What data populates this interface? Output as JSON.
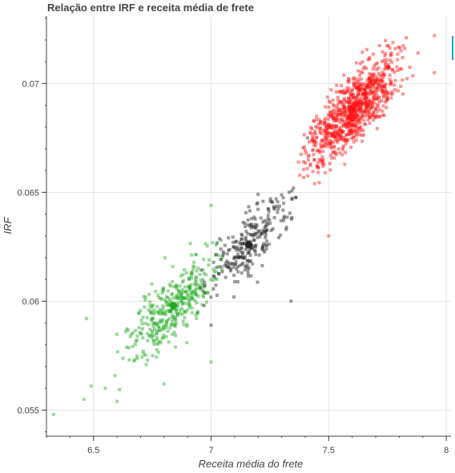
{
  "chart_data": {
    "type": "scatter",
    "title": "Relação entre IRF e receita média de frete",
    "xlabel": "Receita média do frete",
    "ylabel": "IRF",
    "xlim": [
      6.3,
      8.02
    ],
    "ylim": [
      0.0538,
      0.0731
    ],
    "x_ticks": [
      6.5,
      7,
      7.5,
      8
    ],
    "x_tick_labels": [
      "6.5",
      "7",
      "7.5",
      "8"
    ],
    "y_ticks": [
      0.055,
      0.06,
      0.065,
      0.07
    ],
    "y_tick_labels": [
      "0.055",
      "0.06",
      "0.065",
      "0.07"
    ],
    "grid": true,
    "legend": "none",
    "clusters": [
      {
        "color": "#22aa22",
        "centroid": {
          "x": 6.84,
          "y": 0.0598
        },
        "count": 380,
        "spread": {
          "major": 0.14,
          "minor": 0.05
        },
        "angle_deg": 49,
        "x_range": [
          6.33,
          7.05
        ],
        "y_range": [
          0.0548,
          0.0644
        ],
        "outliers": [
          {
            "x": 6.33,
            "y": 0.0548
          },
          {
            "x": 6.46,
            "y": 0.0555
          },
          {
            "x": 6.49,
            "y": 0.0561
          },
          {
            "x": 6.55,
            "y": 0.056
          },
          {
            "x": 6.6,
            "y": 0.0554
          },
          {
            "x": 6.47,
            "y": 0.0592
          },
          {
            "x": 6.8,
            "y": 0.0562
          },
          {
            "x": 7.0,
            "y": 0.0572
          },
          {
            "x": 7.0,
            "y": 0.0644
          }
        ]
      },
      {
        "color": "#222222",
        "centroid": {
          "x": 7.16,
          "y": 0.0626
        },
        "count": 260,
        "spread": {
          "major": 0.13,
          "minor": 0.045
        },
        "angle_deg": 51,
        "x_range": [
          6.95,
          7.43
        ],
        "y_range": [
          0.0588,
          0.0675
        ],
        "outliers": [
          {
            "x": 7.0,
            "y": 0.0589
          },
          {
            "x": 7.34,
            "y": 0.06
          },
          {
            "x": 7.41,
            "y": 0.0675
          },
          {
            "x": 7.35,
            "y": 0.0652
          }
        ]
      },
      {
        "color": "#ff1111",
        "centroid": {
          "x": 7.6,
          "y": 0.0688
        },
        "count": 900,
        "spread": {
          "major": 0.14,
          "minor": 0.05
        },
        "angle_deg": 50,
        "x_range": [
          7.36,
          7.95
        ],
        "y_range": [
          0.063,
          0.0722
        ],
        "outliers": [
          {
            "x": 7.5,
            "y": 0.063
          },
          {
            "x": 7.44,
            "y": 0.0654
          },
          {
            "x": 7.95,
            "y": 0.0722
          },
          {
            "x": 7.83,
            "y": 0.0721
          },
          {
            "x": 7.88,
            "y": 0.0714
          },
          {
            "x": 7.95,
            "y": 0.0705
          }
        ]
      }
    ]
  }
}
